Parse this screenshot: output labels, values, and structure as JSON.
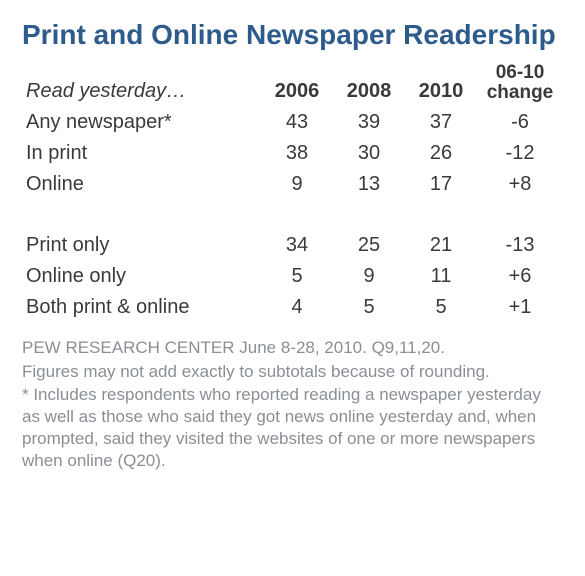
{
  "title": "Print and Online Newspaper Readership",
  "table": {
    "subheader": "Read yesterday…",
    "columns": [
      "2006",
      "2008",
      "2010"
    ],
    "change_header_line1": "06-10",
    "change_header_line2": "change",
    "group1": [
      {
        "label": "Any newspaper*",
        "vals": [
          "43",
          "39",
          "37"
        ],
        "change": "-6"
      },
      {
        "label": "In print",
        "vals": [
          "38",
          "30",
          "26"
        ],
        "change": "-12"
      },
      {
        "label": "Online",
        "vals": [
          "9",
          "13",
          "17"
        ],
        "change": "+8"
      }
    ],
    "group2": [
      {
        "label": "Print only",
        "vals": [
          "34",
          "25",
          "21"
        ],
        "change": "-13"
      },
      {
        "label": "Online only",
        "vals": [
          "5",
          "9",
          "11"
        ],
        "change": "+6"
      },
      {
        "label": "Both print & online",
        "vals": [
          "4",
          "5",
          "5"
        ],
        "change": "+1"
      }
    ]
  },
  "footnotes": [
    "PEW RESEARCH  CENTER June 8-28, 2010. Q9,11,20.",
    "Figures may not add exactly to subtotals because of rounding.",
    "* Includes respondents who reported reading a newspaper yesterday as well as those who said they got news online yesterday and, when  prompted, said they visited the websites of one or more newspapers when online (Q20)."
  ],
  "colors": {
    "title": "#2d5b8c",
    "text": "#3a3a3a",
    "footnote": "#8a8f94",
    "background": "#ffffff"
  },
  "typography": {
    "title_fontsize": 28,
    "body_fontsize": 20,
    "footnote_fontsize": 17,
    "font_family": "Arial"
  }
}
